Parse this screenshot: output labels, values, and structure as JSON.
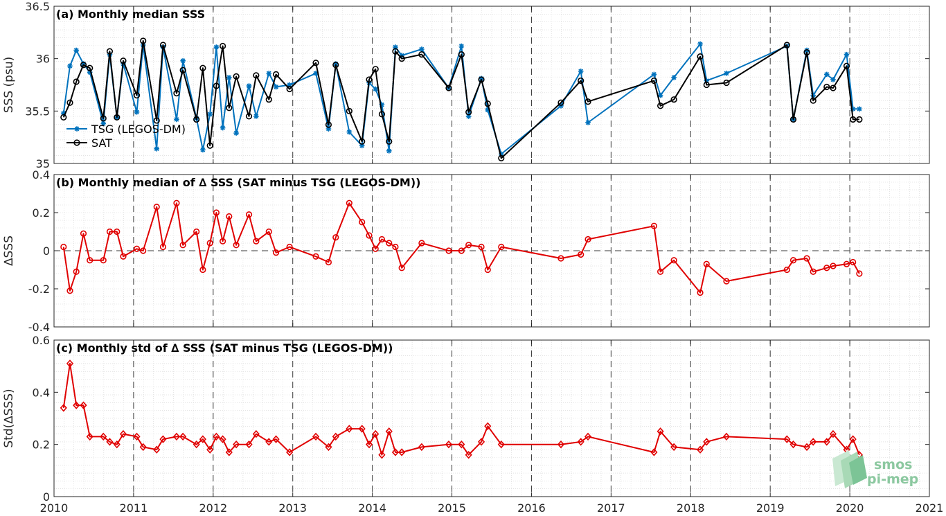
{
  "x_tick_labels": [
    "2010",
    "2011",
    "2012",
    "2013",
    "2014",
    "2015",
    "2016",
    "2017",
    "2018",
    "2019",
    "2020",
    "2021"
  ],
  "logo": {
    "line1": "smos",
    "line2": "pi-mep"
  },
  "colors": {
    "tsg": "#0072BD",
    "sat": "#000000",
    "delta": "#E00000"
  },
  "chart_data": [
    {
      "type": "line",
      "title": "(a) Monthly median SSS",
      "xlabel": "",
      "ylabel": "SSS (psu)",
      "xlim": [
        2010,
        2021
      ],
      "ylim": [
        35,
        36.5
      ],
      "y_ticks": [
        "35",
        "35.5",
        "36",
        "36.5"
      ],
      "legend": "top-left",
      "grid": true,
      "series": [
        {
          "name": "TSG (LEGOS-DM)",
          "marker": "asterisk",
          "x": [
            2010.12,
            2010.2,
            2010.28,
            2010.37,
            2010.45,
            2010.62,
            2010.7,
            2010.79,
            2010.87,
            2011.04,
            2011.12,
            2011.29,
            2011.37,
            2011.54,
            2011.62,
            2011.79,
            2011.87,
            2011.96,
            2012.04,
            2012.12,
            2012.2,
            2012.29,
            2012.45,
            2012.54,
            2012.7,
            2012.79,
            2012.96,
            2013.29,
            2013.45,
            2013.54,
            2013.71,
            2013.87,
            2013.96,
            2014.04,
            2014.12,
            2014.21,
            2014.29,
            2014.37,
            2014.62,
            2014.96,
            2015.12,
            2015.21,
            2015.37,
            2015.45,
            2015.62,
            2016.37,
            2016.62,
            2016.71,
            2017.54,
            2017.62,
            2017.79,
            2018.12,
            2018.2,
            2018.45,
            2019.21,
            2019.29,
            2019.46,
            2019.54,
            2019.71,
            2019.79,
            2019.96,
            2020.04,
            2020.12
          ],
          "y": [
            35.48,
            35.93,
            36.08,
            35.95,
            35.87,
            35.38,
            36.04,
            35.44,
            35.95,
            35.49,
            36.13,
            35.14,
            36.11,
            35.42,
            35.98,
            35.43,
            35.13,
            35.47,
            36.11,
            35.34,
            35.82,
            35.29,
            35.74,
            35.45,
            35.86,
            35.73,
            35.75,
            35.86,
            35.33,
            35.95,
            35.3,
            35.17,
            35.77,
            35.71,
            35.56,
            35.12,
            36.11,
            36.03,
            36.09,
            35.72,
            36.12,
            35.45,
            35.81,
            35.51,
            35.09,
            35.55,
            35.88,
            35.39,
            35.85,
            35.65,
            35.82,
            36.14,
            35.79,
            35.86,
            36.12,
            35.42,
            36.08,
            35.65,
            35.85,
            35.8,
            36.04,
            35.52,
            35.52
          ]
        },
        {
          "name": "SAT",
          "marker": "circle",
          "x": [
            2010.12,
            2010.2,
            2010.28,
            2010.37,
            2010.45,
            2010.62,
            2010.7,
            2010.79,
            2010.87,
            2011.04,
            2011.12,
            2011.29,
            2011.37,
            2011.54,
            2011.62,
            2011.79,
            2011.87,
            2011.96,
            2012.04,
            2012.12,
            2012.2,
            2012.29,
            2012.45,
            2012.54,
            2012.7,
            2012.79,
            2012.96,
            2013.29,
            2013.45,
            2013.54,
            2013.71,
            2013.87,
            2013.96,
            2014.04,
            2014.12,
            2014.21,
            2014.29,
            2014.37,
            2014.62,
            2014.96,
            2015.12,
            2015.21,
            2015.37,
            2015.45,
            2015.62,
            2016.37,
            2016.62,
            2016.71,
            2017.54,
            2017.62,
            2017.79,
            2018.12,
            2018.2,
            2018.45,
            2019.21,
            2019.29,
            2019.46,
            2019.54,
            2019.71,
            2019.79,
            2019.96,
            2020.04,
            2020.12
          ],
          "y": [
            35.44,
            35.58,
            35.78,
            35.94,
            35.91,
            35.43,
            36.07,
            35.44,
            35.98,
            35.65,
            36.17,
            35.41,
            36.13,
            35.67,
            35.89,
            35.42,
            35.91,
            35.17,
            35.74,
            36.12,
            35.53,
            35.83,
            35.45,
            35.84,
            35.61,
            35.85,
            35.71,
            35.96,
            35.37,
            35.94,
            35.5,
            35.21,
            35.8,
            35.9,
            35.47,
            35.21,
            36.07,
            36.0,
            36.04,
            35.72,
            36.04,
            35.49,
            35.8,
            35.57,
            35.05,
            35.58,
            35.79,
            35.59,
            35.79,
            35.55,
            35.61,
            36.02,
            35.75,
            35.77,
            36.13,
            35.42,
            36.06,
            35.6,
            35.73,
            35.72,
            35.93,
            35.42,
            35.42
          ]
        }
      ]
    },
    {
      "type": "line",
      "title": "(b) Monthly median of ∆ SSS (SAT minus TSG (LEGOS-DM))",
      "xlabel": "",
      "ylabel": "∆SSS",
      "xlim": [
        2010,
        2021
      ],
      "ylim": [
        -0.4,
        0.4
      ],
      "y_ticks": [
        "-0.4",
        "-0.2",
        "0",
        "0.2",
        "0.4"
      ],
      "reference_line": 0,
      "grid": true,
      "series": [
        {
          "name": "",
          "marker": "circle",
          "x": [
            2010.12,
            2010.2,
            2010.28,
            2010.37,
            2010.45,
            2010.62,
            2010.7,
            2010.79,
            2010.87,
            2011.04,
            2011.12,
            2011.29,
            2011.37,
            2011.54,
            2011.62,
            2011.79,
            2011.87,
            2011.96,
            2012.04,
            2012.12,
            2012.2,
            2012.29,
            2012.45,
            2012.54,
            2012.7,
            2012.79,
            2012.96,
            2013.29,
            2013.45,
            2013.54,
            2013.71,
            2013.87,
            2013.96,
            2014.04,
            2014.12,
            2014.21,
            2014.29,
            2014.37,
            2014.62,
            2014.96,
            2015.12,
            2015.21,
            2015.37,
            2015.45,
            2015.62,
            2016.37,
            2016.62,
            2016.71,
            2017.54,
            2017.62,
            2017.79,
            2018.12,
            2018.2,
            2018.45,
            2019.21,
            2019.29,
            2019.46,
            2019.54,
            2019.71,
            2019.79,
            2019.96,
            2020.04,
            2020.12
          ],
          "y": [
            0.02,
            -0.21,
            -0.11,
            0.09,
            -0.05,
            -0.05,
            0.1,
            0.1,
            -0.03,
            0.01,
            0.0,
            0.23,
            0.02,
            0.25,
            0.03,
            0.1,
            -0.1,
            0.04,
            0.2,
            0.05,
            0.18,
            0.03,
            0.19,
            0.05,
            0.1,
            -0.01,
            0.02,
            -0.03,
            -0.06,
            0.07,
            0.25,
            0.15,
            0.08,
            0.01,
            0.06,
            0.04,
            0.02,
            -0.09,
            0.04,
            0.0,
            0.0,
            0.03,
            0.02,
            -0.1,
            0.02,
            -0.04,
            -0.02,
            0.06,
            0.13,
            -0.11,
            -0.05,
            -0.22,
            -0.07,
            -0.16,
            -0.1,
            -0.05,
            -0.04,
            -0.11,
            -0.09,
            -0.08,
            -0.07,
            -0.06,
            -0.12
          ]
        }
      ]
    },
    {
      "type": "line",
      "title": "(c) Monthly std of ∆ SSS (SAT minus TSG (LEGOS-DM))",
      "xlabel": "",
      "ylabel": "Std(∆SSS)",
      "xlim": [
        2010,
        2021
      ],
      "ylim": [
        0,
        0.6
      ],
      "y_ticks": [
        "0",
        "0.2",
        "0.4",
        "0.6"
      ],
      "grid": true,
      "series": [
        {
          "name": "",
          "marker": "diamond",
          "x": [
            2010.12,
            2010.2,
            2010.28,
            2010.37,
            2010.45,
            2010.62,
            2010.7,
            2010.79,
            2010.87,
            2011.04,
            2011.12,
            2011.29,
            2011.37,
            2011.54,
            2011.62,
            2011.79,
            2011.87,
            2011.96,
            2012.04,
            2012.12,
            2012.2,
            2012.29,
            2012.45,
            2012.54,
            2012.7,
            2012.79,
            2012.96,
            2013.29,
            2013.45,
            2013.54,
            2013.71,
            2013.87,
            2013.96,
            2014.04,
            2014.12,
            2014.21,
            2014.29,
            2014.37,
            2014.62,
            2014.96,
            2015.12,
            2015.21,
            2015.37,
            2015.45,
            2015.62,
            2016.37,
            2016.62,
            2016.71,
            2017.54,
            2017.62,
            2017.79,
            2018.12,
            2018.2,
            2018.45,
            2019.21,
            2019.29,
            2019.46,
            2019.54,
            2019.71,
            2019.79,
            2019.96,
            2020.04,
            2020.12
          ],
          "y": [
            0.34,
            0.51,
            0.35,
            0.35,
            0.23,
            0.23,
            0.21,
            0.2,
            0.24,
            0.23,
            0.19,
            0.18,
            0.22,
            0.23,
            0.23,
            0.2,
            0.22,
            0.18,
            0.23,
            0.22,
            0.17,
            0.2,
            0.2,
            0.24,
            0.21,
            0.22,
            0.17,
            0.23,
            0.19,
            0.23,
            0.26,
            0.26,
            0.2,
            0.24,
            0.16,
            0.25,
            0.17,
            0.17,
            0.19,
            0.2,
            0.2,
            0.16,
            0.21,
            0.27,
            0.2,
            0.2,
            0.21,
            0.23,
            0.17,
            0.25,
            0.19,
            0.18,
            0.21,
            0.23,
            0.22,
            0.2,
            0.19,
            0.21,
            0.21,
            0.24,
            0.18,
            0.22,
            0.16
          ]
        }
      ]
    }
  ]
}
